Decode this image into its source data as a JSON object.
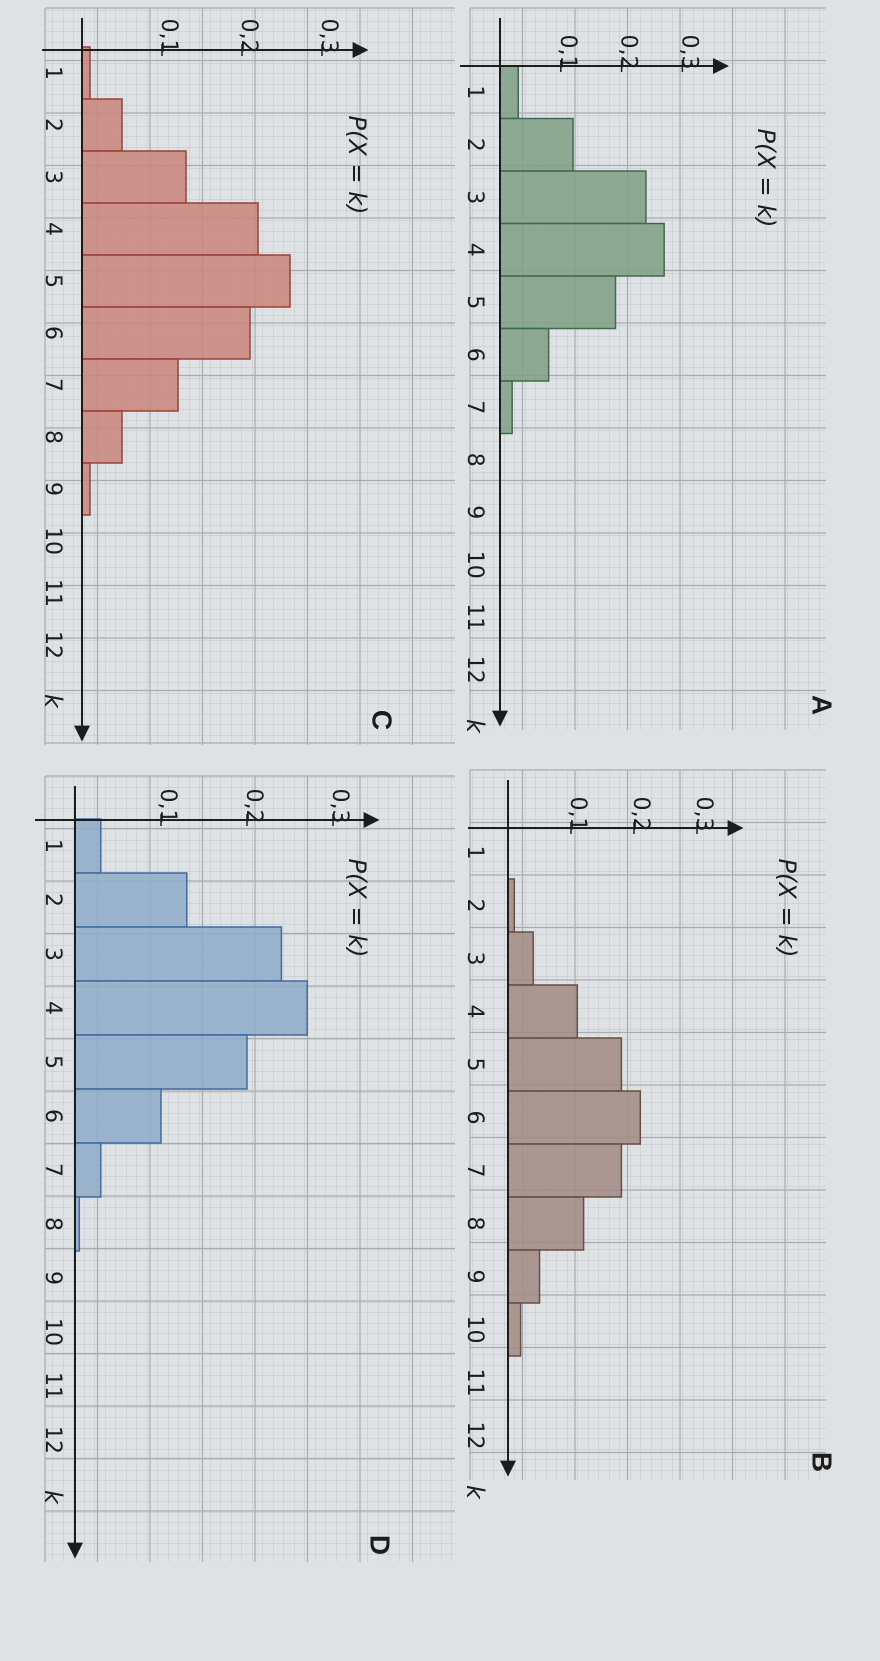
{
  "chart_data": [
    {
      "panel": "A",
      "type": "bar",
      "ylabel": "P(X = k)",
      "xlabel": "k",
      "x": [
        1,
        2,
        3,
        4,
        5,
        6,
        7,
        8,
        9,
        10,
        11,
        12
      ],
      "values": [
        0.03,
        0.12,
        0.24,
        0.27,
        0.19,
        0.08,
        0.02,
        0,
        0,
        0,
        0,
        0
      ],
      "yticks": [
        "0,1",
        "0,2",
        "0,3"
      ],
      "ylim": [
        0,
        0.3
      ],
      "color": "#7f9f86",
      "edge": "#3f6a4c"
    },
    {
      "panel": "B",
      "type": "bar",
      "ylabel": "P(X = k)",
      "xlabel": "k",
      "x": [
        1,
        2,
        3,
        4,
        5,
        6,
        7,
        8,
        9,
        10,
        11,
        12
      ],
      "values": [
        0,
        0.01,
        0.04,
        0.11,
        0.18,
        0.21,
        0.18,
        0.12,
        0.05,
        0.02,
        0,
        0
      ],
      "yticks": [
        "0,1",
        "0,2",
        "0,3"
      ],
      "ylim": [
        0,
        0.3
      ],
      "color": "#a28a84",
      "edge": "#6b4c42"
    },
    {
      "panel": "C",
      "type": "bar",
      "ylabel": "P(X = k)",
      "xlabel": "k",
      "x": [
        1,
        2,
        3,
        4,
        5,
        6,
        7,
        8,
        9,
        10,
        11,
        12
      ],
      "values": [
        0.01,
        0.05,
        0.13,
        0.22,
        0.26,
        0.21,
        0.12,
        0.05,
        0.01,
        0,
        0,
        0
      ],
      "yticks": [
        "0,1",
        "0,2",
        "0,3"
      ],
      "ylim": [
        0,
        0.3
      ],
      "color": "#c9857b",
      "edge": "#9c4035"
    },
    {
      "panel": "D",
      "type": "bar",
      "ylabel": "P(X = k)",
      "xlabel": "k",
      "x": [
        1,
        2,
        3,
        4,
        5,
        6,
        7,
        8,
        9,
        10,
        11,
        12
      ],
      "values": [
        0.03,
        0.13,
        0.24,
        0.27,
        0.2,
        0.1,
        0.03,
        0.005,
        0,
        0,
        0,
        0
      ],
      "yticks": [
        "0,1",
        "0,2",
        "0,3"
      ],
      "ylim": [
        0,
        0.3
      ],
      "color": "#8eacc9",
      "edge": "#3f6aa0"
    }
  ]
}
